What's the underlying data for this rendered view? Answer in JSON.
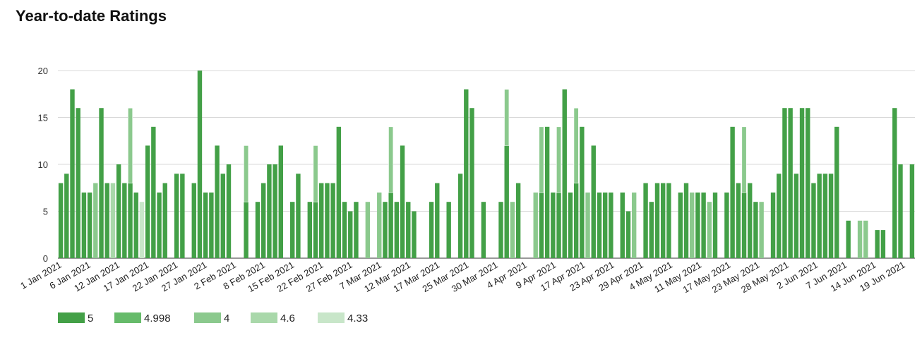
{
  "chart_data": {
    "type": "bar",
    "stacked": true,
    "title": "Year-to-date Ratings",
    "ylim": [
      0,
      20
    ],
    "yticks": [
      0,
      5,
      10,
      15,
      20
    ],
    "grid": true,
    "legend_position": "bottom-left",
    "xticks": [
      "1 Jan 2021",
      "6 Jan 2021",
      "12 Jan 2021",
      "17 Jan 2021",
      "22 Jan 2021",
      "27 Jan 2021",
      "2 Feb 2021",
      "8 Feb 2021",
      "15 Feb 2021",
      "22 Feb 2021",
      "27 Feb 2021",
      "7 Mar 2021",
      "12 Mar 2021",
      "17 Mar 2021",
      "25 Mar 2021",
      "30 Mar 2021",
      "4 Apr 2021",
      "9 Apr 2021",
      "17 Apr 2021",
      "23 Apr 2021",
      "29 Apr 2021",
      "4 May 2021",
      "11 May 2021",
      "17 May 2021",
      "23 May 2021",
      "28 May 2021",
      "2 Jun 2021",
      "7 Jun 2021",
      "14 Jun 2021",
      "19 Jun 2021"
    ],
    "series": [
      {
        "name": "5",
        "color": "#43a047"
      },
      {
        "name": "4.998",
        "color": "#66bb6a"
      },
      {
        "name": "4",
        "color": "#8bc98d"
      },
      {
        "name": "4.6",
        "color": "#a9d8aa"
      },
      {
        "name": "4.33",
        "color": "#c8e6c9"
      }
    ],
    "bars": [
      [
        8,
        0,
        0,
        0,
        0
      ],
      [
        9,
        0,
        0,
        0,
        0
      ],
      [
        18,
        0,
        0,
        0,
        0
      ],
      [
        16,
        0,
        0,
        0,
        0
      ],
      [
        7,
        0,
        0,
        0,
        0
      ],
      [
        7,
        0,
        0,
        0,
        0
      ],
      [
        0,
        0,
        8,
        0,
        0
      ],
      [
        16,
        0,
        0,
        0,
        0
      ],
      [
        8,
        0,
        0,
        0,
        0
      ],
      [
        0,
        0,
        0,
        8,
        0
      ],
      [
        10,
        0,
        0,
        0,
        0
      ],
      [
        8,
        0,
        0,
        0,
        0
      ],
      [
        8,
        0,
        8,
        0,
        0
      ],
      [
        7,
        0,
        0,
        0,
        0
      ],
      [
        0,
        0,
        0,
        0,
        6
      ],
      [
        12,
        0,
        0,
        0,
        0
      ],
      [
        14,
        0,
        0,
        0,
        0
      ],
      [
        7,
        0,
        0,
        0,
        0
      ],
      [
        8,
        0,
        0,
        0,
        0
      ],
      [
        0,
        0,
        0,
        0,
        0
      ],
      [
        9,
        0,
        0,
        0,
        0
      ],
      [
        9,
        0,
        0,
        0,
        0
      ],
      [
        0,
        0,
        0,
        0,
        0
      ],
      [
        8,
        0,
        0,
        0,
        0
      ],
      [
        20,
        0,
        0,
        0,
        0
      ],
      [
        7,
        0,
        0,
        0,
        0
      ],
      [
        7,
        0,
        0,
        0,
        0
      ],
      [
        12,
        0,
        0,
        0,
        0
      ],
      [
        9,
        0,
        0,
        0,
        0
      ],
      [
        10,
        0,
        0,
        0,
        0
      ],
      [
        0,
        0,
        0,
        0,
        0
      ],
      [
        0,
        0,
        0,
        0,
        0
      ],
      [
        6,
        0,
        6,
        0,
        0
      ],
      [
        0,
        0,
        0,
        0,
        0
      ],
      [
        6,
        0,
        0,
        0,
        0
      ],
      [
        8,
        0,
        0,
        0,
        0
      ],
      [
        10,
        0,
        0,
        0,
        0
      ],
      [
        10,
        0,
        0,
        0,
        0
      ],
      [
        12,
        0,
        0,
        0,
        0
      ],
      [
        0,
        0,
        0,
        0,
        0
      ],
      [
        6,
        0,
        0,
        0,
        0
      ],
      [
        9,
        0,
        0,
        0,
        0
      ],
      [
        0,
        0,
        0,
        0,
        0
      ],
      [
        6,
        0,
        0,
        0,
        0
      ],
      [
        6,
        0,
        6,
        0,
        0
      ],
      [
        8,
        0,
        0,
        0,
        0
      ],
      [
        8,
        0,
        0,
        0,
        0
      ],
      [
        8,
        0,
        0,
        0,
        0
      ],
      [
        14,
        0,
        0,
        0,
        0
      ],
      [
        6,
        0,
        0,
        0,
        0
      ],
      [
        5,
        0,
        0,
        0,
        0
      ],
      [
        6,
        0,
        0,
        0,
        0
      ],
      [
        0,
        0,
        0,
        0,
        0
      ],
      [
        0,
        0,
        6,
        0,
        0
      ],
      [
        0,
        0,
        0,
        0,
        0
      ],
      [
        0,
        0,
        7,
        0,
        0
      ],
      [
        6,
        0,
        0,
        0,
        0
      ],
      [
        7,
        0,
        7,
        0,
        0
      ],
      [
        6,
        0,
        0,
        0,
        0
      ],
      [
        12,
        0,
        0,
        0,
        0
      ],
      [
        6,
        0,
        0,
        0,
        0
      ],
      [
        5,
        0,
        0,
        0,
        0
      ],
      [
        0,
        0,
        0,
        0,
        0
      ],
      [
        0,
        0,
        0,
        0,
        0
      ],
      [
        6,
        0,
        0,
        0,
        0
      ],
      [
        8,
        0,
        0,
        0,
        0
      ],
      [
        0,
        0,
        0,
        0,
        0
      ],
      [
        6,
        0,
        0,
        0,
        0
      ],
      [
        0,
        0,
        0,
        0,
        0
      ],
      [
        9,
        0,
        0,
        0,
        0
      ],
      [
        18,
        0,
        0,
        0,
        0
      ],
      [
        16,
        0,
        0,
        0,
        0
      ],
      [
        0,
        0,
        0,
        0,
        0
      ],
      [
        6,
        0,
        0,
        0,
        0
      ],
      [
        0,
        0,
        0,
        0,
        0
      ],
      [
        0,
        0,
        0,
        0,
        0
      ],
      [
        6,
        0,
        0,
        0,
        0
      ],
      [
        12,
        0,
        6,
        0,
        0
      ],
      [
        0,
        0,
        6,
        0,
        0
      ],
      [
        8,
        0,
        0,
        0,
        0
      ],
      [
        0,
        0,
        0,
        0,
        0
      ],
      [
        0,
        0,
        0,
        0,
        0
      ],
      [
        0,
        0,
        7,
        0,
        0
      ],
      [
        7,
        0,
        7,
        0,
        0
      ],
      [
        14,
        0,
        0,
        0,
        0
      ],
      [
        7,
        0,
        0,
        0,
        0
      ],
      [
        7,
        0,
        7,
        0,
        0
      ],
      [
        18,
        0,
        0,
        0,
        0
      ],
      [
        7,
        0,
        0,
        0,
        0
      ],
      [
        8,
        0,
        8,
        0,
        0
      ],
      [
        14,
        0,
        0,
        0,
        0
      ],
      [
        0,
        0,
        7,
        0,
        0
      ],
      [
        12,
        0,
        0,
        0,
        0
      ],
      [
        7,
        0,
        0,
        0,
        0
      ],
      [
        7,
        0,
        0,
        0,
        0
      ],
      [
        7,
        0,
        0,
        0,
        0
      ],
      [
        0,
        0,
        0,
        0,
        0
      ],
      [
        7,
        0,
        0,
        0,
        0
      ],
      [
        5,
        0,
        0,
        0,
        0
      ],
      [
        0,
        0,
        7,
        0,
        0
      ],
      [
        0,
        0,
        0,
        0,
        0
      ],
      [
        8,
        0,
        0,
        0,
        0
      ],
      [
        6,
        0,
        0,
        0,
        0
      ],
      [
        8,
        0,
        0,
        0,
        0
      ],
      [
        8,
        0,
        0,
        0,
        0
      ],
      [
        8,
        0,
        0,
        0,
        0
      ],
      [
        0,
        0,
        0,
        0,
        0
      ],
      [
        7,
        0,
        0,
        0,
        0
      ],
      [
        8,
        0,
        0,
        0,
        0
      ],
      [
        0,
        0,
        7,
        0,
        0
      ],
      [
        7,
        0,
        0,
        0,
        0
      ],
      [
        7,
        0,
        0,
        0,
        0
      ],
      [
        0,
        0,
        6,
        0,
        0
      ],
      [
        7,
        0,
        0,
        0,
        0
      ],
      [
        0,
        0,
        0,
        0,
        0
      ],
      [
        7,
        0,
        0,
        0,
        0
      ],
      [
        14,
        0,
        0,
        0,
        0
      ],
      [
        8,
        0,
        0,
        0,
        0
      ],
      [
        7,
        0,
        7,
        0,
        0
      ],
      [
        8,
        0,
        0,
        0,
        0
      ],
      [
        6,
        0,
        0,
        0,
        0
      ],
      [
        0,
        0,
        6,
        0,
        0
      ],
      [
        0,
        0,
        0,
        0,
        0
      ],
      [
        7,
        0,
        0,
        0,
        0
      ],
      [
        9,
        0,
        0,
        0,
        0
      ],
      [
        16,
        0,
        0,
        0,
        0
      ],
      [
        16,
        0,
        0,
        0,
        0
      ],
      [
        9,
        0,
        0,
        0,
        0
      ],
      [
        16,
        0,
        0,
        0,
        0
      ],
      [
        16,
        0,
        0,
        0,
        0
      ],
      [
        8,
        0,
        0,
        0,
        0
      ],
      [
        9,
        0,
        0,
        0,
        0
      ],
      [
        9,
        0,
        0,
        0,
        0
      ],
      [
        9,
        0,
        0,
        0,
        0
      ],
      [
        14,
        0,
        0,
        0,
        0
      ],
      [
        0,
        0,
        0,
        0,
        0
      ],
      [
        4,
        0,
        0,
        0,
        0
      ],
      [
        0,
        0,
        0,
        0,
        0
      ],
      [
        0,
        0,
        4,
        0,
        0
      ],
      [
        0,
        0,
        4,
        0,
        0
      ],
      [
        0,
        0,
        0,
        0,
        0
      ],
      [
        3,
        0,
        0,
        0,
        0
      ],
      [
        3,
        0,
        0,
        0,
        0
      ],
      [
        0,
        0,
        0,
        0,
        0
      ],
      [
        16,
        0,
        0,
        0,
        0
      ],
      [
        10,
        0,
        0,
        0,
        0
      ],
      [
        0,
        0,
        0,
        0,
        0
      ],
      [
        10,
        0,
        0,
        0,
        0
      ]
    ]
  }
}
